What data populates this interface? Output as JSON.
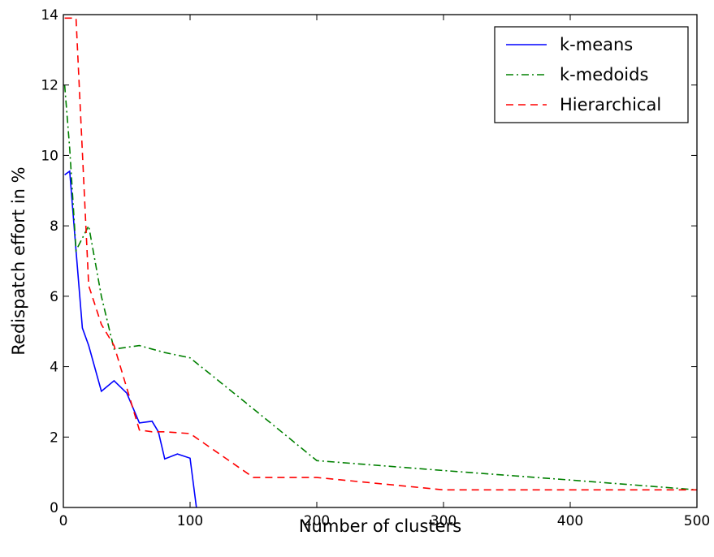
{
  "chart_data": {
    "type": "line",
    "xlabel": "Number of clusters",
    "ylabel": "Redispatch effort in %",
    "xlim": [
      0,
      500
    ],
    "ylim": [
      0,
      14
    ],
    "xticks": [
      0,
      100,
      200,
      300,
      400,
      500
    ],
    "yticks": [
      0,
      2,
      4,
      6,
      8,
      10,
      12,
      14
    ],
    "grid": false,
    "legend_position": "top-right",
    "series": [
      {
        "name": "k-means",
        "color": "#0000ff",
        "style": "solid",
        "points": [
          [
            1,
            9.45
          ],
          [
            5,
            9.55
          ],
          [
            10,
            7.3
          ],
          [
            15,
            5.1
          ],
          [
            20,
            4.6
          ],
          [
            30,
            3.3
          ],
          [
            40,
            3.6
          ],
          [
            50,
            3.25
          ],
          [
            60,
            2.4
          ],
          [
            70,
            2.45
          ],
          [
            75,
            2.15
          ],
          [
            80,
            1.38
          ],
          [
            90,
            1.52
          ],
          [
            100,
            1.4
          ],
          [
            105,
            0.0
          ]
        ]
      },
      {
        "name": "k-medoids",
        "color": "#008000",
        "style": "dashdot",
        "points": [
          [
            1,
            12.0
          ],
          [
            5,
            10.2
          ],
          [
            10,
            7.3
          ],
          [
            20,
            8.0
          ],
          [
            30,
            6.0
          ],
          [
            40,
            4.5
          ],
          [
            60,
            4.6
          ],
          [
            80,
            4.4
          ],
          [
            100,
            4.25
          ],
          [
            150,
            2.8
          ],
          [
            200,
            1.33
          ],
          [
            300,
            1.05
          ],
          [
            400,
            0.78
          ],
          [
            500,
            0.5
          ]
        ]
      },
      {
        "name": "Hierarchical",
        "color": "#ff0000",
        "style": "dashed",
        "points": [
          [
            1,
            13.9
          ],
          [
            10,
            13.9
          ],
          [
            20,
            6.3
          ],
          [
            30,
            5.2
          ],
          [
            40,
            4.6
          ],
          [
            60,
            2.2
          ],
          [
            70,
            2.15
          ],
          [
            80,
            2.15
          ],
          [
            100,
            2.1
          ],
          [
            150,
            0.85
          ],
          [
            200,
            0.85
          ],
          [
            300,
            0.5
          ],
          [
            400,
            0.5
          ],
          [
            500,
            0.5
          ]
        ]
      }
    ]
  }
}
